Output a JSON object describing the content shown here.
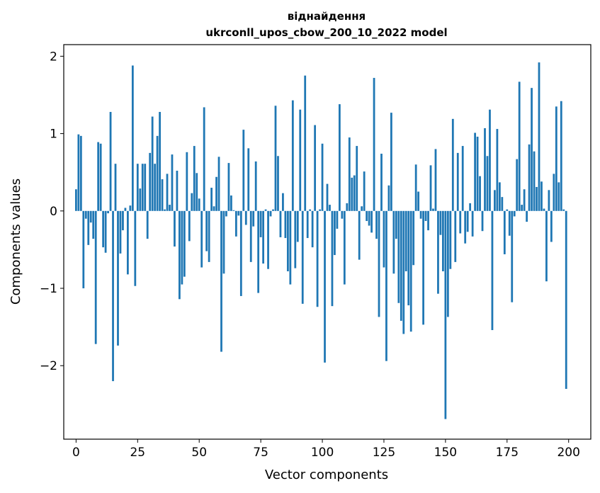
{
  "chart_data": {
    "type": "bar",
    "title_line1": "віднайдення",
    "title_line2": "ukrconll_upos_cbow_200_10_2022 model",
    "xlabel": "Vector components",
    "ylabel": "Components values",
    "xlim": [
      -5,
      209
    ],
    "ylim": [
      -2.95,
      2.15
    ],
    "xticks": [
      0,
      25,
      50,
      75,
      100,
      125,
      150,
      175,
      200
    ],
    "xtick_labels": [
      "0",
      "25",
      "50",
      "75",
      "100",
      "125",
      "150",
      "175",
      "200"
    ],
    "yticks": [
      -2,
      -1,
      0,
      1,
      2
    ],
    "ytick_labels": [
      "−2",
      "−1",
      "0",
      "1",
      "2"
    ],
    "bar_color": "#1f77b4",
    "x": [
      0,
      1,
      2,
      3,
      4,
      5,
      6,
      7,
      8,
      9,
      10,
      11,
      12,
      13,
      14,
      15,
      16,
      17,
      18,
      19,
      20,
      21,
      22,
      23,
      24,
      25,
      26,
      27,
      28,
      29,
      30,
      31,
      32,
      33,
      34,
      35,
      36,
      37,
      38,
      39,
      40,
      41,
      42,
      43,
      44,
      45,
      46,
      47,
      48,
      49,
      50,
      51,
      52,
      53,
      54,
      55,
      56,
      57,
      58,
      59,
      60,
      61,
      62,
      63,
      64,
      65,
      66,
      67,
      68,
      69,
      70,
      71,
      72,
      73,
      74,
      75,
      76,
      77,
      78,
      79,
      80,
      81,
      82,
      83,
      84,
      85,
      86,
      87,
      88,
      89,
      90,
      91,
      92,
      93,
      94,
      95,
      96,
      97,
      98,
      99,
      100,
      101,
      102,
      103,
      104,
      105,
      106,
      107,
      108,
      109,
      110,
      111,
      112,
      113,
      114,
      115,
      116,
      117,
      118,
      119,
      120,
      121,
      122,
      123,
      124,
      125,
      126,
      127,
      128,
      129,
      130,
      131,
      132,
      133,
      134,
      135,
      136,
      137,
      138,
      139,
      140,
      141,
      142,
      143,
      144,
      145,
      146,
      147,
      148,
      149,
      150,
      151,
      152,
      153,
      154,
      155,
      156,
      157,
      158,
      159,
      160,
      161,
      162,
      163,
      164,
      165,
      166,
      167,
      168,
      169,
      170,
      171,
      172,
      173,
      174,
      175,
      176,
      177,
      178,
      179,
      180,
      181,
      182,
      183,
      184,
      185,
      186,
      187,
      188,
      189,
      190,
      191,
      192,
      193,
      194,
      195,
      196,
      197,
      198,
      199
    ],
    "values": [
      0.28,
      0.99,
      0.97,
      -1.0,
      -0.1,
      -0.44,
      -0.15,
      -0.36,
      -1.72,
      0.89,
      0.87,
      -0.47,
      -0.54,
      -0.03,
      1.28,
      -2.2,
      0.61,
      -1.74,
      -0.55,
      -0.25,
      0.04,
      -0.82,
      0.07,
      1.88,
      -0.97,
      0.61,
      0.29,
      0.61,
      0.61,
      -0.36,
      0.75,
      1.22,
      0.61,
      0.97,
      1.28,
      0.41,
      0.02,
      0.48,
      0.08,
      0.73,
      -0.46,
      0.52,
      -1.14,
      -0.95,
      -0.85,
      0.76,
      -0.39,
      0.23,
      0.84,
      0.49,
      0.16,
      -0.73,
      1.34,
      -0.52,
      -0.66,
      0.3,
      0.06,
      0.44,
      0.7,
      -1.82,
      -0.81,
      -0.07,
      0.62,
      0.2,
      0.01,
      -0.33,
      -0.06,
      -1.1,
      1.05,
      -0.18,
      0.81,
      -0.66,
      -0.2,
      0.64,
      -1.06,
      -0.34,
      -0.68,
      0.02,
      -0.75,
      -0.07,
      0.02,
      1.36,
      0.71,
      -0.34,
      0.23,
      -0.35,
      -0.78,
      -0.95,
      1.43,
      -0.74,
      -0.4,
      1.31,
      -1.2,
      1.75,
      -0.35,
      0.02,
      -0.47,
      1.11,
      -1.24,
      0.02,
      0.87,
      -1.96,
      0.35,
      0.08,
      -1.23,
      -0.57,
      -0.23,
      1.38,
      -0.1,
      -0.95,
      0.1,
      0.95,
      0.43,
      0.46,
      0.84,
      -0.63,
      0.06,
      0.51,
      -0.13,
      -0.19,
      -0.28,
      1.72,
      -0.36,
      -1.37,
      0.74,
      -0.73,
      -1.94,
      0.33,
      1.27,
      -0.81,
      -0.36,
      -1.19,
      -1.42,
      -1.59,
      -0.78,
      -1.22,
      -1.56,
      -0.7,
      0.6,
      0.25,
      -0.1,
      -1.47,
      -0.13,
      -0.25,
      0.59,
      0.03,
      0.8,
      -1.07,
      -0.31,
      -0.78,
      -2.69,
      -1.37,
      -0.75,
      1.19,
      -0.66,
      0.75,
      -0.29,
      0.84,
      -0.42,
      -0.27,
      0.1,
      -0.33,
      1.01,
      0.96,
      0.45,
      -0.26,
      1.07,
      0.71,
      1.31,
      -1.54,
      0.27,
      1.06,
      0.37,
      0.18,
      -0.56,
      0.02,
      -0.32,
      -1.18,
      -0.07,
      0.67,
      1.67,
      0.08,
      0.28,
      -0.14,
      0.86,
      1.59,
      0.77,
      0.31,
      1.92,
      0.38,
      0.03,
      -0.91,
      0.27,
      -0.4,
      0.48,
      1.35,
      0.37,
      1.42,
      0.02,
      -2.3
    ]
  }
}
